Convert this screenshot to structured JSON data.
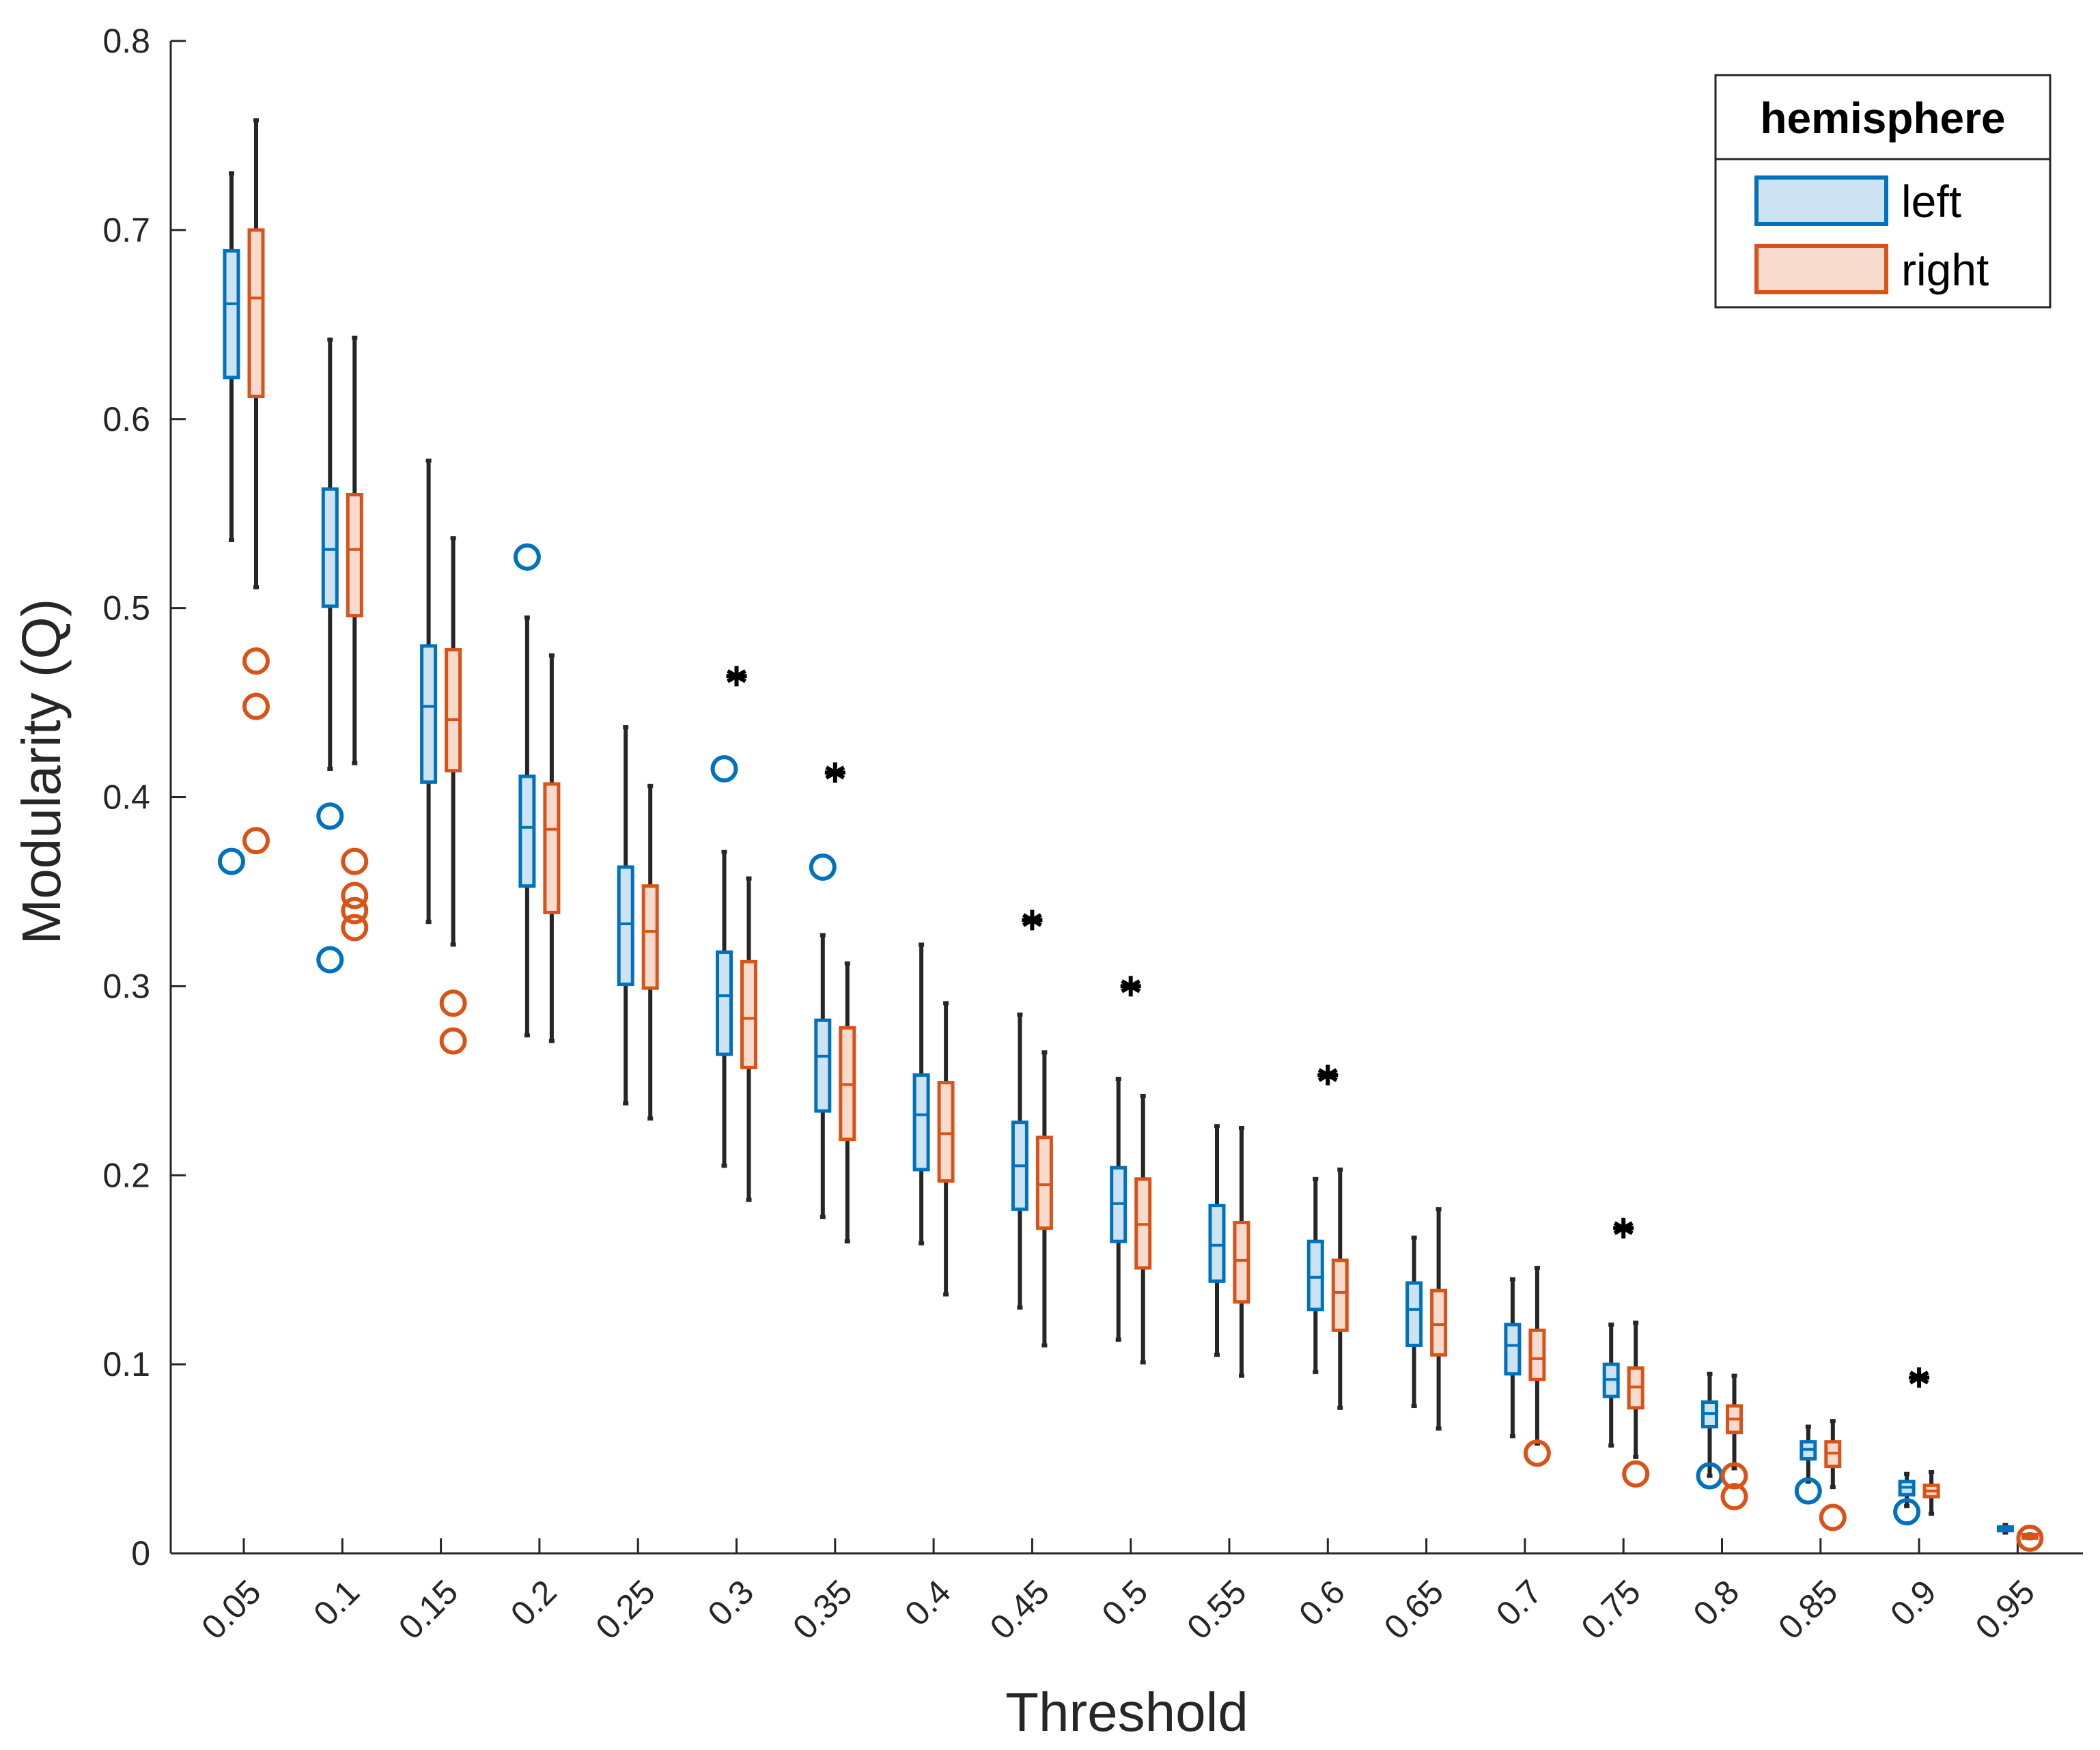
{
  "chart_data": {
    "type": "box",
    "xlabel": "Threshold",
    "ylabel": "Modularity (Q)",
    "ylim": [
      0,
      0.8
    ],
    "yticks": [
      "0",
      "0.1",
      "0.2",
      "0.3",
      "0.4",
      "0.5",
      "0.6",
      "0.7",
      "0.8"
    ],
    "categories": [
      "0.05",
      "0.1",
      "0.15",
      "0.2",
      "0.25",
      "0.3",
      "0.35",
      "0.4",
      "0.45",
      "0.5",
      "0.55",
      "0.6",
      "0.65",
      "0.7",
      "0.75",
      "0.8",
      "0.85",
      "0.9",
      "0.95"
    ],
    "legend": {
      "title": "hemisphere",
      "position": "top-right"
    },
    "significance_marker": "*",
    "series": [
      {
        "name": "left",
        "color": "#0072BD",
        "fill": "#cde3f1",
        "boxes": [
          {
            "q1": 0.622,
            "median": 0.661,
            "q3": 0.689,
            "whisker_low": 0.536,
            "whisker_high": 0.73,
            "outliers": [
              0.366
            ]
          },
          {
            "q1": 0.501,
            "median": 0.531,
            "q3": 0.563,
            "whisker_low": 0.415,
            "whisker_high": 0.642,
            "outliers": [
              0.39,
              0.314
            ]
          },
          {
            "q1": 0.408,
            "median": 0.448,
            "q3": 0.48,
            "whisker_low": 0.334,
            "whisker_high": 0.578,
            "outliers": []
          },
          {
            "q1": 0.353,
            "median": 0.384,
            "q3": 0.411,
            "whisker_low": 0.274,
            "whisker_high": 0.495,
            "outliers": [
              0.527
            ]
          },
          {
            "q1": 0.301,
            "median": 0.333,
            "q3": 0.363,
            "whisker_low": 0.238,
            "whisker_high": 0.437,
            "outliers": []
          },
          {
            "q1": 0.264,
            "median": 0.295,
            "q3": 0.318,
            "whisker_low": 0.205,
            "whisker_high": 0.371,
            "outliers": [
              0.415
            ]
          },
          {
            "q1": 0.234,
            "median": 0.263,
            "q3": 0.282,
            "whisker_low": 0.178,
            "whisker_high": 0.327,
            "outliers": [
              0.363
            ]
          },
          {
            "q1": 0.203,
            "median": 0.232,
            "q3": 0.253,
            "whisker_low": 0.164,
            "whisker_high": 0.322,
            "outliers": []
          },
          {
            "q1": 0.182,
            "median": 0.205,
            "q3": 0.228,
            "whisker_low": 0.13,
            "whisker_high": 0.285,
            "outliers": []
          },
          {
            "q1": 0.165,
            "median": 0.185,
            "q3": 0.204,
            "whisker_low": 0.113,
            "whisker_high": 0.251,
            "outliers": []
          },
          {
            "q1": 0.144,
            "median": 0.163,
            "q3": 0.184,
            "whisker_low": 0.105,
            "whisker_high": 0.226,
            "outliers": []
          },
          {
            "q1": 0.129,
            "median": 0.146,
            "q3": 0.165,
            "whisker_low": 0.096,
            "whisker_high": 0.198,
            "outliers": []
          },
          {
            "q1": 0.11,
            "median": 0.129,
            "q3": 0.143,
            "whisker_low": 0.078,
            "whisker_high": 0.167,
            "outliers": []
          },
          {
            "q1": 0.095,
            "median": 0.11,
            "q3": 0.121,
            "whisker_low": 0.062,
            "whisker_high": 0.145,
            "outliers": []
          },
          {
            "q1": 0.083,
            "median": 0.092,
            "q3": 0.1,
            "whisker_low": 0.057,
            "whisker_high": 0.121,
            "outliers": []
          },
          {
            "q1": 0.067,
            "median": 0.074,
            "q3": 0.08,
            "whisker_low": 0.041,
            "whisker_high": 0.095,
            "outliers": [
              0.041
            ]
          },
          {
            "q1": 0.05,
            "median": 0.055,
            "q3": 0.059,
            "whisker_low": 0.038,
            "whisker_high": 0.067,
            "outliers": [
              0.033
            ]
          },
          {
            "q1": 0.031,
            "median": 0.035,
            "q3": 0.038,
            "whisker_low": 0.025,
            "whisker_high": 0.042,
            "outliers": [
              0.022
            ]
          },
          {
            "q1": 0.012,
            "median": 0.013,
            "q3": 0.014,
            "whisker_low": 0.011,
            "whisker_high": 0.015,
            "outliers": []
          }
        ]
      },
      {
        "name": "right",
        "color": "#D95319",
        "fill": "#f7dbcf",
        "boxes": [
          {
            "q1": 0.612,
            "median": 0.664,
            "q3": 0.7,
            "whisker_low": 0.511,
            "whisker_high": 0.758,
            "outliers": [
              0.472,
              0.448,
              0.377
            ]
          },
          {
            "q1": 0.496,
            "median": 0.531,
            "q3": 0.56,
            "whisker_low": 0.418,
            "whisker_high": 0.643,
            "outliers": [
              0.366,
              0.348,
              0.34,
              0.331
            ]
          },
          {
            "q1": 0.414,
            "median": 0.441,
            "q3": 0.478,
            "whisker_low": 0.322,
            "whisker_high": 0.537,
            "outliers": [
              0.291,
              0.271
            ]
          },
          {
            "q1": 0.339,
            "median": 0.383,
            "q3": 0.407,
            "whisker_low": 0.271,
            "whisker_high": 0.475,
            "outliers": []
          },
          {
            "q1": 0.299,
            "median": 0.329,
            "q3": 0.353,
            "whisker_low": 0.23,
            "whisker_high": 0.406,
            "outliers": []
          },
          {
            "q1": 0.257,
            "median": 0.283,
            "q3": 0.313,
            "whisker_low": 0.187,
            "whisker_high": 0.357,
            "outliers": []
          },
          {
            "q1": 0.219,
            "median": 0.248,
            "q3": 0.278,
            "whisker_low": 0.165,
            "whisker_high": 0.312,
            "outliers": []
          },
          {
            "q1": 0.197,
            "median": 0.222,
            "q3": 0.249,
            "whisker_low": 0.137,
            "whisker_high": 0.291,
            "outliers": []
          },
          {
            "q1": 0.172,
            "median": 0.195,
            "q3": 0.22,
            "whisker_low": 0.11,
            "whisker_high": 0.265,
            "outliers": []
          },
          {
            "q1": 0.151,
            "median": 0.174,
            "q3": 0.198,
            "whisker_low": 0.101,
            "whisker_high": 0.242,
            "outliers": []
          },
          {
            "q1": 0.133,
            "median": 0.155,
            "q3": 0.175,
            "whisker_low": 0.094,
            "whisker_high": 0.225,
            "outliers": []
          },
          {
            "q1": 0.118,
            "median": 0.138,
            "q3": 0.155,
            "whisker_low": 0.077,
            "whisker_high": 0.203,
            "outliers": []
          },
          {
            "q1": 0.105,
            "median": 0.121,
            "q3": 0.139,
            "whisker_low": 0.066,
            "whisker_high": 0.182,
            "outliers": []
          },
          {
            "q1": 0.092,
            "median": 0.103,
            "q3": 0.118,
            "whisker_low": 0.058,
            "whisker_high": 0.151,
            "outliers": [
              0.053
            ]
          },
          {
            "q1": 0.077,
            "median": 0.088,
            "q3": 0.098,
            "whisker_low": 0.051,
            "whisker_high": 0.122,
            "outliers": [
              0.042
            ]
          },
          {
            "q1": 0.064,
            "median": 0.071,
            "q3": 0.078,
            "whisker_low": 0.045,
            "whisker_high": 0.094,
            "outliers": [
              0.041,
              0.03
            ]
          },
          {
            "q1": 0.046,
            "median": 0.053,
            "q3": 0.059,
            "whisker_low": 0.035,
            "whisker_high": 0.07,
            "outliers": [
              0.019
            ]
          },
          {
            "q1": 0.03,
            "median": 0.033,
            "q3": 0.036,
            "whisker_low": 0.021,
            "whisker_high": 0.043,
            "outliers": []
          },
          {
            "q1": 0.008,
            "median": 0.009,
            "q3": 0.01,
            "whisker_low": 0.008,
            "whisker_high": 0.01,
            "outliers": [
              0.008
            ]
          }
        ]
      }
    ],
    "significance": [
      {
        "category": "0.3",
        "y": 0.464
      },
      {
        "category": "0.35",
        "y": 0.413
      },
      {
        "category": "0.45",
        "y": 0.335
      },
      {
        "category": "0.5",
        "y": 0.3
      },
      {
        "category": "0.6",
        "y": 0.253
      },
      {
        "category": "0.75",
        "y": 0.172
      },
      {
        "category": "0.9",
        "y": 0.093
      }
    ]
  }
}
